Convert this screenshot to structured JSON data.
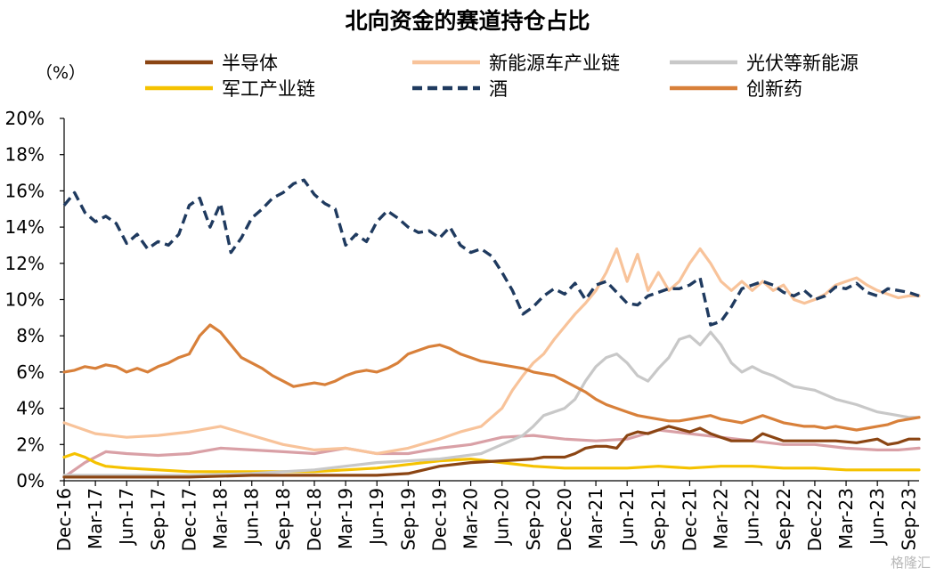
{
  "chart_data": {
    "type": "line",
    "title": "北向资金的赛道持仓占比",
    "unit_label": "（%）",
    "y_tick_labels": [
      "0%",
      "2%",
      "4%",
      "6%",
      "8%",
      "10%",
      "12%",
      "14%",
      "16%",
      "18%",
      "20%"
    ],
    "ylim": [
      0,
      20
    ],
    "x_tick_labels": [
      "Dec-16",
      "Mar-17",
      "Jun-17",
      "Sep-17",
      "Dec-17",
      "Mar-18",
      "Jun-18",
      "Sep-18",
      "Dec-18",
      "Mar-19",
      "Jun-19",
      "Sep-19",
      "Dec-19",
      "Mar-20",
      "Jun-20",
      "Sep-20",
      "Dec-20",
      "Mar-21",
      "Jun-21",
      "Sep-21",
      "Dec-21",
      "Mar-22",
      "Jun-22",
      "Sep-22",
      "Dec-22",
      "Mar-23",
      "Jun-23",
      "Sep-23"
    ],
    "xlim": [
      0,
      82
    ],
    "x_unit": "months since Dec-16",
    "grid": false,
    "legend_position": "top",
    "watermark": "格隆汇",
    "series": [
      {
        "name": "半导体",
        "color": "#8B4513",
        "dash": "solid",
        "x": [
          0,
          6,
          12,
          18,
          24,
          30,
          33,
          36,
          39,
          42,
          45,
          46,
          48,
          49,
          50,
          51,
          52,
          53,
          54,
          55,
          56,
          57,
          58,
          60,
          61,
          62,
          63,
          64,
          66,
          67,
          69,
          70,
          72,
          74,
          76,
          78,
          79,
          80,
          81,
          82
        ],
        "values": [
          0.2,
          0.2,
          0.2,
          0.3,
          0.3,
          0.3,
          0.4,
          0.8,
          1.0,
          1.1,
          1.2,
          1.3,
          1.3,
          1.5,
          1.8,
          1.9,
          1.9,
          1.8,
          2.5,
          2.7,
          2.6,
          2.8,
          3.0,
          2.7,
          2.9,
          2.6,
          2.4,
          2.2,
          2.2,
          2.6,
          2.2,
          2.2,
          2.2,
          2.2,
          2.1,
          2.3,
          2.0,
          2.1,
          2.3,
          2.3
        ]
      },
      {
        "name": "新能源车产业链",
        "color": "#F8C39A",
        "dash": "solid",
        "x": [
          0,
          3,
          6,
          9,
          12,
          15,
          18,
          21,
          24,
          27,
          30,
          33,
          36,
          38,
          40,
          42,
          43,
          44,
          45,
          46,
          47,
          48,
          49,
          50,
          51,
          52,
          53,
          54,
          55,
          56,
          57,
          58,
          59,
          60,
          61,
          62,
          63,
          64,
          65,
          66,
          67,
          68,
          69,
          70,
          71,
          72,
          73,
          74,
          75,
          76,
          77,
          78,
          79,
          80,
          81,
          82
        ],
        "values": [
          3.2,
          2.6,
          2.4,
          2.5,
          2.7,
          3.0,
          2.5,
          2.0,
          1.7,
          1.8,
          1.5,
          1.8,
          2.3,
          2.7,
          3.0,
          4.0,
          5.0,
          5.8,
          6.5,
          7.0,
          7.8,
          8.5,
          9.2,
          9.8,
          10.5,
          11.5,
          12.8,
          11.0,
          12.5,
          10.5,
          11.5,
          10.5,
          11.0,
          12.0,
          12.8,
          12.0,
          11.0,
          10.5,
          11.0,
          10.5,
          11.0,
          10.5,
          10.8,
          10.0,
          9.8,
          10.0,
          10.3,
          10.8,
          11.0,
          11.2,
          10.8,
          10.5,
          10.3,
          10.1,
          10.2,
          10.2
        ]
      },
      {
        "name": "光伏等新能源",
        "color": "#C8C8C8",
        "dash": "solid",
        "x": [
          0,
          6,
          12,
          18,
          24,
          30,
          36,
          40,
          42,
          44,
          45,
          46,
          47,
          48,
          49,
          50,
          51,
          52,
          53,
          54,
          55,
          56,
          57,
          58,
          59,
          60,
          61,
          62,
          63,
          64,
          65,
          66,
          67,
          68,
          69,
          70,
          72,
          74,
          76,
          78,
          79,
          80,
          81,
          82
        ],
        "values": [
          0.3,
          0.3,
          0.3,
          0.4,
          0.6,
          1.0,
          1.2,
          1.5,
          2.0,
          2.5,
          3.0,
          3.6,
          3.8,
          4.0,
          4.5,
          5.5,
          6.3,
          6.8,
          7.0,
          6.5,
          5.8,
          5.5,
          6.2,
          6.8,
          7.8,
          8.0,
          7.5,
          8.2,
          7.5,
          6.5,
          6.0,
          6.3,
          6.0,
          5.8,
          5.5,
          5.2,
          5.0,
          4.5,
          4.2,
          3.8,
          3.7,
          3.6,
          3.5,
          3.5
        ]
      },
      {
        "name": "军工产业链",
        "color": "#F5C200",
        "dash": "solid",
        "x": [
          0,
          1,
          2,
          3,
          4,
          6,
          9,
          12,
          18,
          21,
          24,
          27,
          30,
          33,
          36,
          39,
          42,
          45,
          48,
          51,
          54,
          57,
          60,
          63,
          66,
          69,
          72,
          75,
          78,
          82
        ],
        "values": [
          1.3,
          1.5,
          1.3,
          1.0,
          0.8,
          0.7,
          0.6,
          0.5,
          0.5,
          0.5,
          0.5,
          0.6,
          0.7,
          0.9,
          1.1,
          1.2,
          1.0,
          0.8,
          0.7,
          0.7,
          0.7,
          0.8,
          0.7,
          0.8,
          0.8,
          0.7,
          0.7,
          0.6,
          0.6,
          0.6
        ]
      },
      {
        "name": "酒",
        "color": "#1F3A5F",
        "dash": "dashed",
        "x": [
          0,
          1,
          2,
          3,
          4,
          5,
          6,
          7,
          8,
          9,
          10,
          11,
          12,
          13,
          14,
          15,
          16,
          17,
          18,
          19,
          20,
          21,
          22,
          23,
          24,
          25,
          26,
          27,
          28,
          29,
          30,
          31,
          32,
          33,
          34,
          35,
          36,
          37,
          38,
          39,
          40,
          41,
          42,
          43,
          44,
          45,
          46,
          47,
          48,
          49,
          50,
          51,
          52,
          53,
          54,
          55,
          56,
          57,
          58,
          59,
          60,
          61,
          62,
          63,
          64,
          65,
          66,
          67,
          68,
          69,
          70,
          71,
          72,
          73,
          74,
          75,
          76,
          77,
          78,
          79,
          80,
          81,
          82
        ],
        "values": [
          15.2,
          15.9,
          14.8,
          14.3,
          14.6,
          14.2,
          13.1,
          13.6,
          12.8,
          13.2,
          13.0,
          13.6,
          15.2,
          15.6,
          14.0,
          15.3,
          12.6,
          13.4,
          14.5,
          15.0,
          15.6,
          15.9,
          16.4,
          16.6,
          15.8,
          15.3,
          15.0,
          13.0,
          13.6,
          13.2,
          14.3,
          14.9,
          14.5,
          14.0,
          13.7,
          13.8,
          13.4,
          14.0,
          13.0,
          12.6,
          12.8,
          12.4,
          11.5,
          10.5,
          9.2,
          9.6,
          10.2,
          10.6,
          10.3,
          10.9,
          10.0,
          10.8,
          11.0,
          10.4,
          9.8,
          9.7,
          10.2,
          10.4,
          10.6,
          10.6,
          10.8,
          11.2,
          8.6,
          8.8,
          9.6,
          10.6,
          10.8,
          11.0,
          10.8,
          10.4,
          10.2,
          10.5,
          10.0,
          10.2,
          10.7,
          10.6,
          10.9,
          10.4,
          10.2,
          10.6,
          10.5,
          10.4,
          10.2
        ]
      },
      {
        "name": "创新药",
        "color": "#D8803A",
        "dash": "solid",
        "x": [
          0,
          1,
          2,
          3,
          4,
          5,
          6,
          7,
          8,
          9,
          10,
          11,
          12,
          13,
          14,
          15,
          16,
          17,
          18,
          19,
          20,
          21,
          22,
          23,
          24,
          25,
          26,
          27,
          28,
          29,
          30,
          31,
          32,
          33,
          34,
          35,
          36,
          37,
          38,
          39,
          40,
          41,
          42,
          43,
          44,
          45,
          46,
          47,
          48,
          49,
          50,
          51,
          52,
          53,
          54,
          55,
          56,
          57,
          58,
          59,
          60,
          61,
          62,
          63,
          64,
          65,
          66,
          67,
          68,
          69,
          70,
          71,
          72,
          73,
          74,
          75,
          76,
          77,
          78,
          79,
          80,
          81,
          82
        ],
        "values": [
          6.0,
          6.1,
          6.3,
          6.2,
          6.4,
          6.3,
          6.0,
          6.2,
          6.0,
          6.3,
          6.5,
          6.8,
          7.0,
          8.0,
          8.6,
          8.2,
          7.5,
          6.8,
          6.5,
          6.2,
          5.8,
          5.5,
          5.2,
          5.3,
          5.4,
          5.3,
          5.5,
          5.8,
          6.0,
          6.1,
          6.0,
          6.2,
          6.5,
          7.0,
          7.2,
          7.4,
          7.5,
          7.3,
          7.0,
          6.8,
          6.6,
          6.5,
          6.4,
          6.3,
          6.2,
          6.0,
          5.9,
          5.8,
          5.5,
          5.2,
          4.9,
          4.5,
          4.2,
          4.0,
          3.8,
          3.6,
          3.5,
          3.4,
          3.3,
          3.3,
          3.4,
          3.5,
          3.6,
          3.4,
          3.3,
          3.2,
          3.4,
          3.6,
          3.4,
          3.2,
          3.1,
          3.0,
          3.0,
          2.9,
          3.0,
          2.9,
          2.8,
          2.9,
          3.0,
          3.1,
          3.3,
          3.4,
          3.5
        ]
      },
      {
        "name": "",
        "color": "#D9A0A6",
        "dash": "solid",
        "x": [
          0,
          2,
          4,
          6,
          9,
          12,
          15,
          18,
          21,
          24,
          27,
          30,
          33,
          36,
          39,
          42,
          45,
          48,
          51,
          54,
          57,
          60,
          63,
          66,
          69,
          72,
          75,
          78,
          80,
          82
        ],
        "values": [
          0.2,
          1.0,
          1.6,
          1.5,
          1.4,
          1.5,
          1.8,
          1.7,
          1.6,
          1.5,
          1.8,
          1.5,
          1.5,
          1.8,
          2.0,
          2.4,
          2.5,
          2.3,
          2.2,
          2.3,
          2.8,
          2.6,
          2.4,
          2.2,
          2.0,
          2.0,
          1.8,
          1.7,
          1.7,
          1.8
        ]
      }
    ]
  }
}
